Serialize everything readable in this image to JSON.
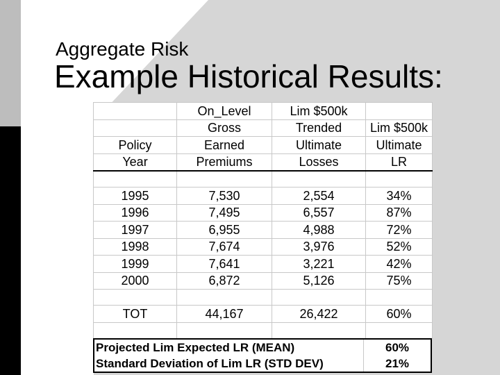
{
  "slide": {
    "subtitle": "Aggregate Risk",
    "title": "Example Historical Results:"
  },
  "table": {
    "header_rows": [
      [
        "",
        "On_Level",
        "Lim $500k",
        ""
      ],
      [
        "",
        "Gross",
        "Trended",
        "Lim $500k"
      ],
      [
        "Policy",
        "Earned",
        "Ultimate",
        "Ultimate"
      ],
      [
        "Year",
        "Premiums",
        "Losses",
        "LR"
      ]
    ],
    "rows": [
      [
        "1995",
        "7,530",
        "2,554",
        "34%"
      ],
      [
        "1996",
        "7,495",
        "6,557",
        "87%"
      ],
      [
        "1997",
        "6,955",
        "4,988",
        "72%"
      ],
      [
        "1998",
        "7,674",
        "3,976",
        "52%"
      ],
      [
        "1999",
        "7,641",
        "3,221",
        "42%"
      ],
      [
        "2000",
        "6,872",
        "5,126",
        "75%"
      ]
    ],
    "total": [
      "TOT",
      "44,167",
      "26,422",
      "60%"
    ]
  },
  "summary": {
    "mean_label": "Projected Lim Expected LR (MEAN)",
    "mean_value": "60%",
    "std_label": "Standard Deviation of Lim LR (STD DEV)",
    "std_value": "21%"
  },
  "colors": {
    "left_bar_top": "#bdbdbd",
    "left_bar_bottom": "#000000",
    "background_shape": "#d6d6d6"
  }
}
